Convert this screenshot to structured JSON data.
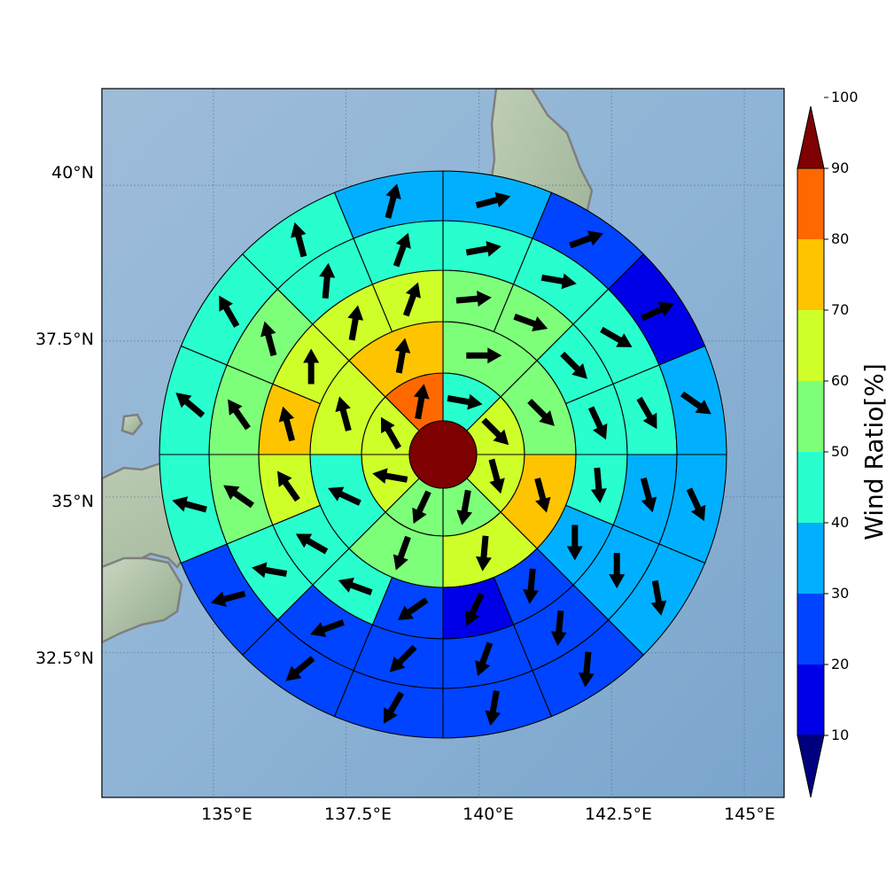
{
  "x_axis": {
    "ticks": [
      "135°E",
      "137.5°E",
      "140°E",
      "142.5°E",
      "145°E"
    ],
    "values": [
      135,
      137.5,
      140,
      142.5,
      145
    ],
    "range": [
      132.9,
      145.75
    ]
  },
  "y_axis": {
    "ticks": [
      "40°N",
      "37.5°N",
      "35°N",
      "32.5°N"
    ],
    "values": [
      40,
      37.5,
      35,
      32.5
    ],
    "range": [
      30.18,
      41.55
    ]
  },
  "grid": "dotted",
  "colorbar": {
    "title": "Wind Ratio[%]",
    "ticks": [
      "10",
      "20",
      "30",
      "40",
      "50",
      "60",
      "70",
      "80",
      "90",
      "100"
    ],
    "levels": [
      0,
      10,
      20,
      30,
      40,
      50,
      60,
      70,
      80,
      90,
      100
    ],
    "colors": [
      "#00007f",
      "#0000e8",
      "#0044ff",
      "#00b0ff",
      "#29ffce",
      "#7dff7a",
      "#ceff29",
      "#ffc400",
      "#ff6800",
      "#e80000",
      "#7f0000"
    ],
    "extend": "both"
  },
  "map": {
    "ocean_color": "#8fb4d4",
    "land_color": "#a8bda0",
    "coast_color": "#7f7f7f",
    "center_color": "#7f0000"
  },
  "chart_data": {
    "type": "heatmap",
    "description_kind": "polar wind-rose grid of wind ratio with mean wind direction arrows",
    "rings": [
      {
        "sectors": 8,
        "values": [
          45,
          65,
          65,
          55,
          55,
          65,
          65,
          85
        ],
        "arrow_dirs_deg": [
          100,
          135,
          165,
          190,
          205,
          280,
          330,
          10
        ]
      },
      {
        "sectors": 8,
        "values": [
          55,
          55,
          75,
          65,
          55,
          45,
          65,
          75
        ],
        "arrow_dirs_deg": [
          90,
          135,
          165,
          185,
          200,
          295,
          345,
          10
        ]
      },
      {
        "sectors": 16,
        "values": [
          55,
          55,
          45,
          45,
          45,
          35,
          25,
          15,
          25,
          45,
          45,
          65,
          75,
          65,
          65,
          65
        ],
        "arrow_dirs_deg": [
          85,
          110,
          135,
          155,
          175,
          180,
          185,
          205,
          235,
          290,
          300,
          325,
          345,
          0,
          10,
          20
        ]
      },
      {
        "sectors": 16,
        "values": [
          45,
          45,
          45,
          45,
          35,
          35,
          25,
          25,
          25,
          25,
          45,
          55,
          55,
          55,
          45,
          45
        ],
        "arrow_dirs_deg": [
          80,
          100,
          120,
          150,
          165,
          180,
          185,
          200,
          225,
          250,
          280,
          305,
          325,
          345,
          5,
          20
        ]
      },
      {
        "sectors": 16,
        "values": [
          35,
          25,
          15,
          35,
          35,
          35,
          25,
          25,
          25,
          25,
          25,
          45,
          45,
          45,
          45,
          35
        ],
        "arrow_dirs_deg": [
          75,
          70,
          65,
          125,
          155,
          170,
          185,
          190,
          210,
          230,
          255,
          285,
          310,
          330,
          345,
          15
        ]
      }
    ]
  }
}
